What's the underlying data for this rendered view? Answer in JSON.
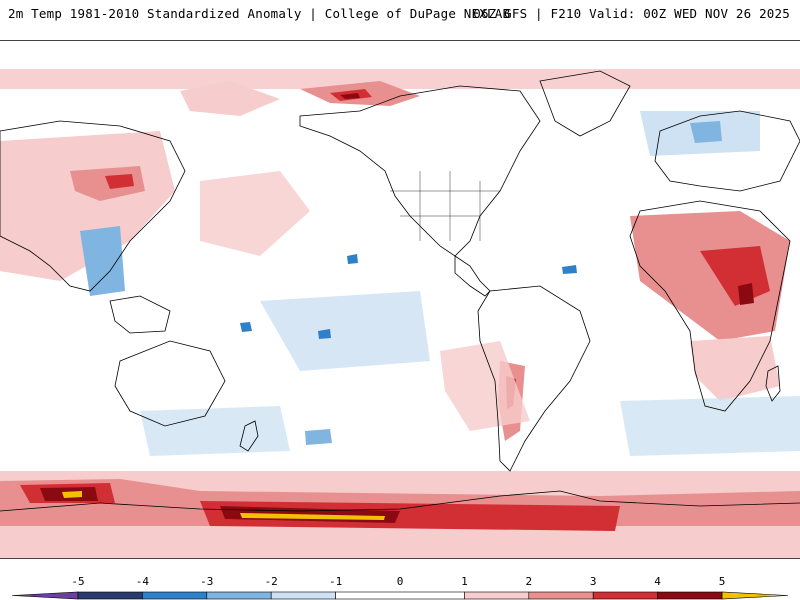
{
  "header": {
    "title_left": "2m Temp 1981-2010 Standardized Anomaly | College of DuPage NEXLAB",
    "title_right": "06Z GFS | F210 Valid: 00Z WED NOV 26 2025"
  },
  "legend": {
    "ticks": [
      "-5",
      "-4",
      "-3",
      "-2",
      "-1",
      "0",
      "1",
      "2",
      "3",
      "4",
      "5"
    ],
    "bins": [
      {
        "from": -5,
        "to": -4,
        "color": "#2b3a6e"
      },
      {
        "from": -4,
        "to": -3,
        "color": "#2f80c7"
      },
      {
        "from": -3,
        "to": -2,
        "color": "#7fb5e0"
      },
      {
        "from": -2,
        "to": -1,
        "color": "#cfe2f3"
      },
      {
        "from": -1,
        "to": 1,
        "color": "#ffffff"
      },
      {
        "from": 1,
        "to": 2,
        "color": "#f6cccc"
      },
      {
        "from": 2,
        "to": 3,
        "color": "#e88f8f"
      },
      {
        "from": 3,
        "to": 4,
        "color": "#d22f35"
      },
      {
        "from": 4,
        "to": 5,
        "color": "#8b0a12"
      }
    ],
    "under_color": "#6a3fa0",
    "over_color": "#f2c200"
  },
  "map": {
    "projection": "global",
    "colors": {
      "ocean": "#ffffff",
      "coast": "#000000",
      "pale_red": "#f6cccc",
      "red": "#e88f8f",
      "deep_red": "#d22f35",
      "dark_red": "#8b0a12",
      "pale_blue": "#cfe2f3",
      "blue": "#7fb5e0",
      "deep_blue": "#2f80c7",
      "yellow": "#f2c200"
    }
  }
}
